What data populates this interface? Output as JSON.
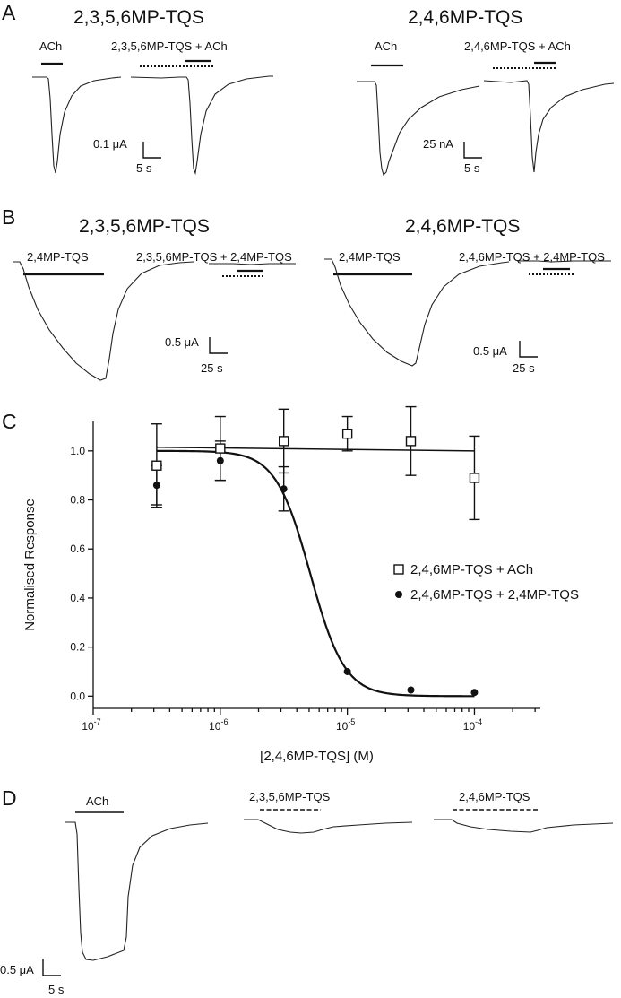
{
  "panels": {
    "a": {
      "label": "A",
      "left_title": "2,3,5,6MP-TQS",
      "right_title": "2,4,6MP-TQS",
      "left_ach": "ACh",
      "left_combo": "2,3,5,6MP-TQS + ACh",
      "right_ach": "ACh",
      "right_combo": "2,4,6MP-TQS + ACh",
      "left_scale_y": "0.1 μA",
      "left_scale_x": "5 s",
      "right_scale_y": "25 nA",
      "right_scale_x": "5 s"
    },
    "b": {
      "label": "B",
      "left_title": "2,3,5,6MP-TQS",
      "right_title": "2,4,6MP-TQS",
      "left_agonist": "2,4MP-TQS",
      "left_combo": "2,3,5,6MP-TQS + 2,4MP-TQS",
      "right_agonist": "2,4MP-TQS",
      "right_combo": "2,4,6MP-TQS + 2,4MP-TQS",
      "left_scale_y": "0.5 μA",
      "left_scale_x": "25 s",
      "right_scale_y": "0.5 μA",
      "right_scale_x": "25 s"
    },
    "c": {
      "label": "C"
    },
    "d": {
      "label": "D",
      "ach": "ACh",
      "mid": "2,3,5,6MP-TQS",
      "right": "2,4,6MP-TQS",
      "scale_y": "0.5 μA",
      "scale_x": "5 s"
    }
  },
  "chart_data": {
    "type": "scatter",
    "ylabel": "Normalised Response",
    "xlabel": "[2,4,6MP-TQS] (M)",
    "x_scale": "log",
    "xlim": [
      1e-07,
      0.00033
    ],
    "ylim": [
      -0.05,
      1.12
    ],
    "y_ticks": [
      "0.0",
      "0.2",
      "0.4",
      "0.6",
      "0.8",
      "1.0"
    ],
    "x_ticks": [
      {
        "base": "10",
        "exp": "-7"
      },
      {
        "base": "10",
        "exp": "-6"
      },
      {
        "base": "10",
        "exp": "-5"
      },
      {
        "base": "10",
        "exp": "-4"
      }
    ],
    "legend_position": "right",
    "series": [
      {
        "name": "2,4,6MP-TQS + ACh",
        "marker": "open-square",
        "x": [
          3.16e-07,
          1e-06,
          3.16e-06,
          1e-05,
          3.16e-05,
          0.0001
        ],
        "y": [
          0.94,
          1.01,
          1.04,
          1.07,
          1.04,
          0.89
        ],
        "err": [
          0.17,
          0.13,
          0.13,
          0.07,
          0.14,
          0.17
        ],
        "fit": {
          "type": "line",
          "y_start": 1.015,
          "y_end": 1.0
        }
      },
      {
        "name": "2,4,6MP-TQS + 2,4MP-TQS",
        "marker": "filled-circle",
        "x": [
          3.16e-07,
          1e-06,
          3.16e-06,
          1e-05,
          3.16e-05,
          0.0001
        ],
        "y": [
          0.86,
          0.96,
          0.845,
          0.1,
          0.025,
          0.015
        ],
        "err": [
          0.08,
          0.08,
          0.09,
          0.0,
          0.0,
          0.0
        ],
        "fit": {
          "type": "hill",
          "top": 1.0,
          "bottom": 0.0,
          "ic50": 5.1e-06,
          "hill": 3.2
        }
      }
    ]
  }
}
